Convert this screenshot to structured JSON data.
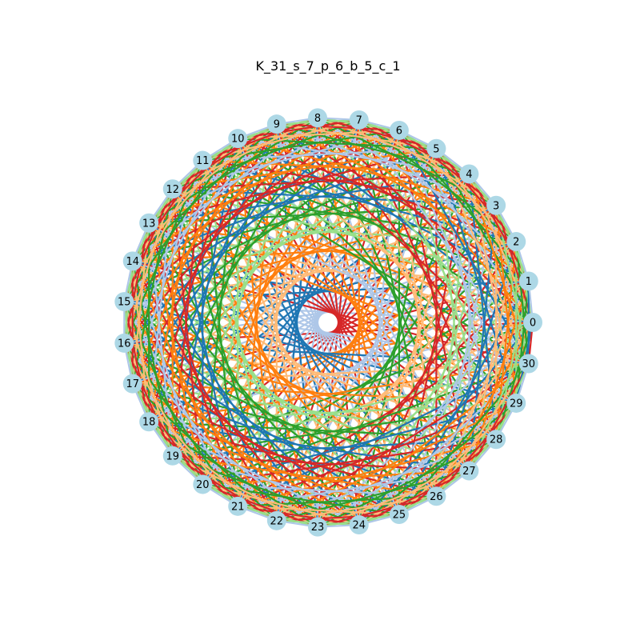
{
  "title": "K_31_s_7_p_6_b_5_c_1",
  "graph": {
    "type": "complete-graph",
    "node_count": 31,
    "node_labels": [
      "0",
      "1",
      "2",
      "3",
      "4",
      "5",
      "6",
      "7",
      "8",
      "9",
      "10",
      "11",
      "12",
      "13",
      "14",
      "15",
      "16",
      "17",
      "18",
      "19",
      "20",
      "21",
      "22",
      "23",
      "24",
      "25",
      "26",
      "27",
      "28",
      "29",
      "30"
    ],
    "node_color": "#add8e6",
    "edge_palette": [
      "#1f77b4",
      "#ff7f0e",
      "#2ca02c",
      "#d62728",
      "#aec7e8",
      "#ffbb78",
      "#98df8a"
    ],
    "layout": "circular"
  }
}
